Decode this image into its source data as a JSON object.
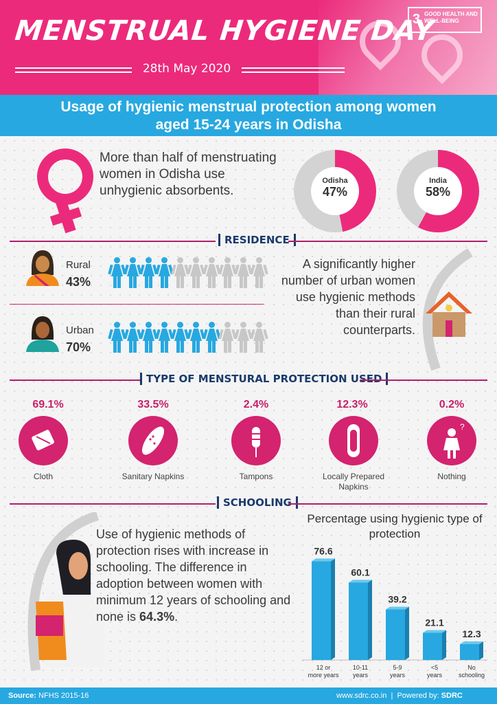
{
  "header": {
    "title": "MENSTRUAL HYGIENE DAY",
    "date": "28th May 2020",
    "sdg_number": "3",
    "sdg_label": "GOOD HEALTH AND WELL-BEING"
  },
  "banner": {
    "line1": "Usage of hygienic menstrual protection among women",
    "line2": "aged 15-24 years in Odisha"
  },
  "intro": {
    "text": "More than half of menstruating women in Odisha use unhygienic absorbents.",
    "donuts": [
      {
        "label": "Odisha",
        "value": 47,
        "display": "47%"
      },
      {
        "label": "India",
        "value": 58,
        "display": "58%"
      }
    ]
  },
  "residence": {
    "section_title": "RESIDENCE",
    "rows": [
      {
        "label": "Rural",
        "pct": "43%",
        "filled": 4,
        "total": 10
      },
      {
        "label": "Urban",
        "pct": "70%",
        "filled": 7,
        "total": 10
      }
    ],
    "note": "A significantly higher number of urban women use hygienic methods than their rural counterparts."
  },
  "protection": {
    "section_title": "TYPE OF MENSTURAL PROTECTION USED",
    "items": [
      {
        "pct": "69.1%",
        "label": "Cloth",
        "icon": "cloth-icon"
      },
      {
        "pct": "33.5%",
        "label": "Sanitary Napkins",
        "icon": "sanitary-napkin-icon"
      },
      {
        "pct": "2.4%",
        "label": "Tampons",
        "icon": "tampon-icon"
      },
      {
        "pct": "12.3%",
        "label": "Locally Prepared Napkins",
        "icon": "local-napkin-icon"
      },
      {
        "pct": "0.2%",
        "label": "Nothing",
        "icon": "confused-woman-icon"
      }
    ]
  },
  "schooling": {
    "section_title": "SCHOOLING",
    "text_main": "Use of hygienic methods of protection rises with increase in schooling. The difference in adoption between women with minimum 12 years of schooling and none is ",
    "text_highlight": "64.3%",
    "text_end": "."
  },
  "chart_data": {
    "type": "bar",
    "title": "Percentage using hygienic type of protection",
    "categories": [
      "12 or more years",
      "10-11 years",
      "5-9 years",
      "<5 years",
      "No schooling"
    ],
    "values": [
      76.6,
      60.1,
      39.2,
      21.1,
      12.3
    ],
    "ylim": [
      0,
      80
    ],
    "bar_color": "#27a8e0",
    "grid": false
  },
  "footer": {
    "source_label": "Source:",
    "source": "NFHS 2015-16",
    "url": "www.sdrc.co.in",
    "powered_label": "Powered by:",
    "powered": "SDRC"
  },
  "colors": {
    "pink": "#ec2a7b",
    "blue": "#27a8e0",
    "navy": "#1a3a6b",
    "grey": "#c7c7c7"
  }
}
